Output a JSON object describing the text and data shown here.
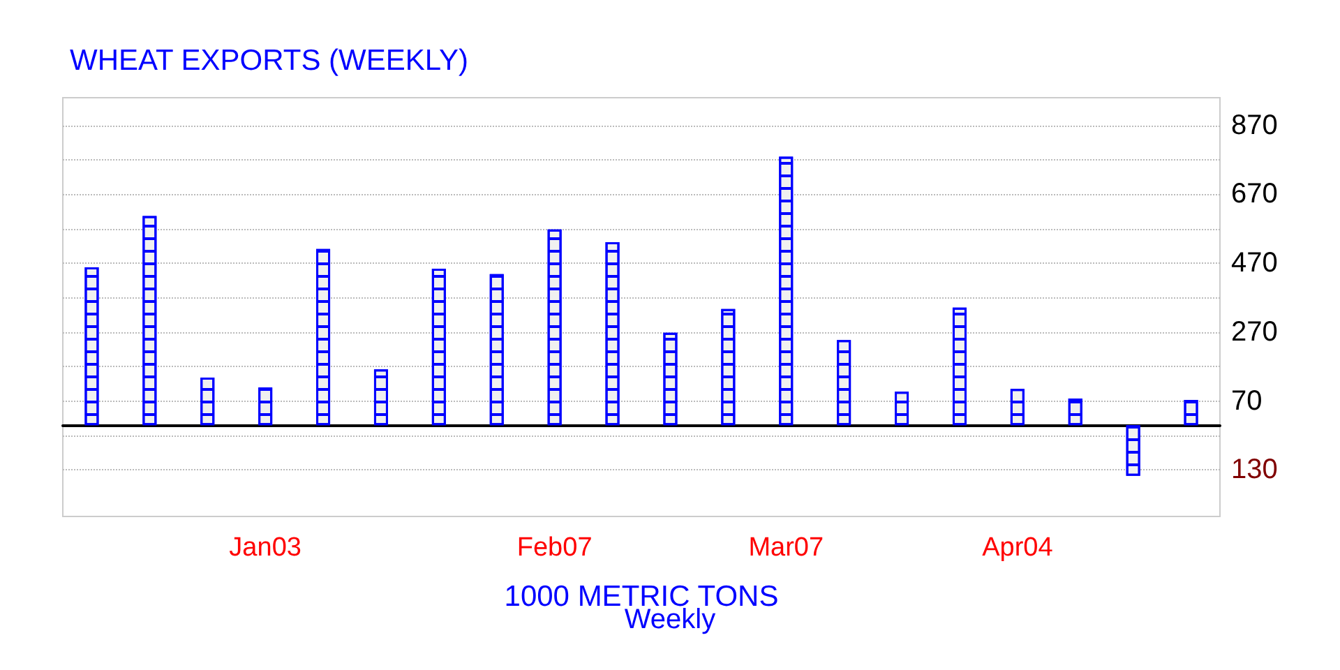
{
  "chart_data": {
    "type": "bar",
    "title": "WHEAT EXPORTS (WEEKLY)",
    "xlabel": "1000 METRIC TONS",
    "annotations": [
      "Weekly"
    ],
    "categories": [
      null,
      null,
      null,
      "Jan03",
      null,
      null,
      null,
      null,
      "Feb07",
      null,
      null,
      null,
      "Mar07",
      null,
      null,
      null,
      "Apr04",
      null,
      null,
      null
    ],
    "values": [
      458,
      607,
      138,
      109,
      511,
      162,
      454,
      438,
      568,
      531,
      268,
      337,
      779,
      247,
      97,
      341,
      105,
      77,
      -147,
      73
    ],
    "color": "#0000ff",
    "ylim": [
      -265,
      950
    ],
    "yticks": [
      {
        "value": -130,
        "label": "130"
      },
      {
        "value": -30,
        "label": null
      },
      70,
      {
        "value": 170,
        "label": null
      },
      270,
      {
        "value": 370,
        "label": null
      },
      470,
      {
        "value": 570,
        "label": null
      },
      670,
      {
        "value": 770,
        "label": null
      },
      870
    ],
    "grid": true
  }
}
